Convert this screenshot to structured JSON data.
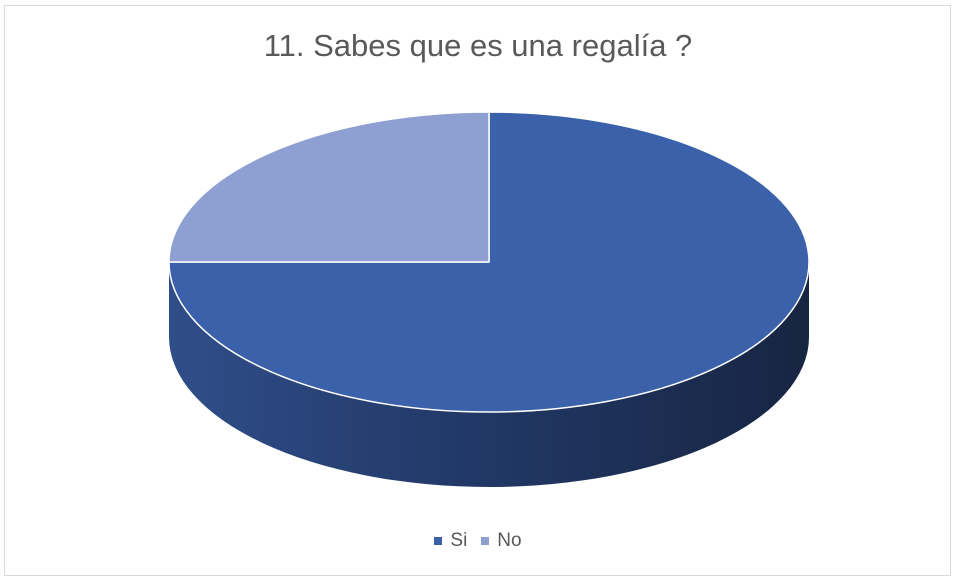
{
  "chart_data": {
    "type": "pie",
    "title": "11. Sabes que es una regalía ?",
    "categories": [
      "Si",
      "No"
    ],
    "values": [
      75,
      25
    ],
    "colors": [
      "#3A61AA",
      "#8E9FD2"
    ],
    "side_color_dark": "#172542",
    "side_color_light": "#2F4E89",
    "legend_position": "bottom",
    "style": "3d"
  }
}
